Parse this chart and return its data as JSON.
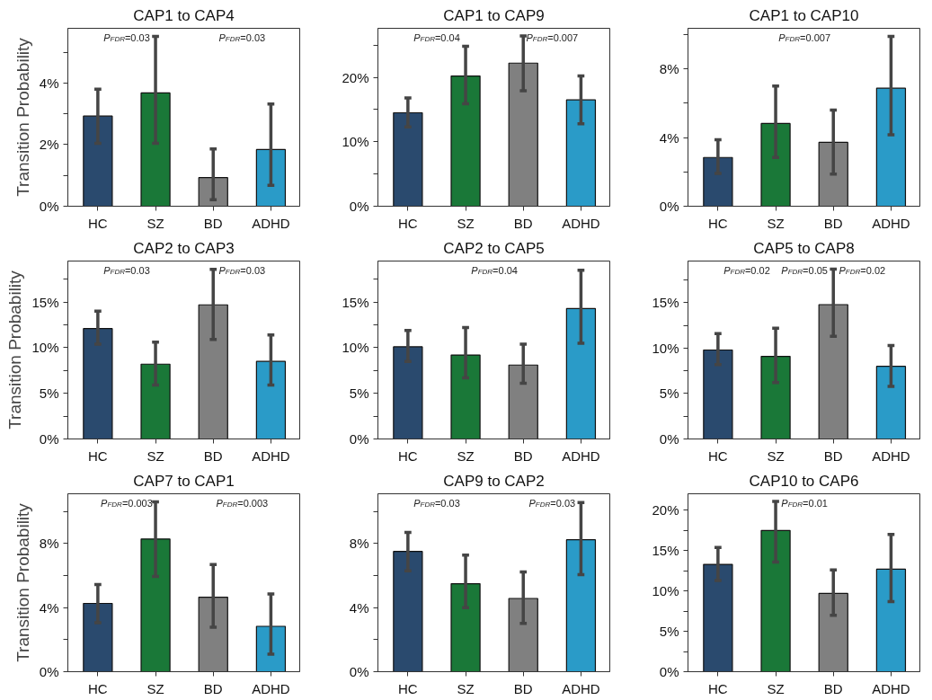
{
  "chart_data": [
    {
      "type": "bar",
      "title": "CAP1 to CAP4",
      "ylabel": "Transition Probability",
      "categories": [
        "HC",
        "SZ",
        "BD",
        "ADHD"
      ],
      "values": [
        2.93,
        3.68,
        0.93,
        1.84
      ],
      "colors": [
        "#2a4a6e",
        "#1a7838",
        "#808080",
        "#2a9bc8"
      ],
      "errors": [
        [
          2.04,
          3.8
        ],
        [
          2.04,
          5.52
        ],
        [
          0.21,
          1.86
        ],
        [
          0.68,
          3.32
        ]
      ],
      "ylim": [
        0,
        5.78
      ],
      "yticks": [
        {
          "value": 0,
          "label": "0%"
        },
        {
          "value": 1,
          "label": null
        },
        {
          "value": 2,
          "label": "2%"
        },
        {
          "value": 3,
          "label": null
        },
        {
          "value": 4,
          "label": "4%"
        },
        {
          "value": 5,
          "label": null
        }
      ],
      "grid": false,
      "annotations": [
        "P$_{FDR}$=0.03",
        "P$_{FDR}$=0.03"
      ]
    },
    {
      "type": "bar",
      "title": "CAP1 to CAP9",
      "categories": [
        "HC",
        "SZ",
        "BD",
        "ADHD"
      ],
      "values": [
        14.5,
        20.2,
        22.2,
        16.5
      ],
      "colors": [
        "#2a4a6e",
        "#1a7838",
        "#808080",
        "#2a9bc8"
      ],
      "errors": [
        [
          12.3,
          16.8
        ],
        [
          15.9,
          24.8
        ],
        [
          17.9,
          26.4
        ],
        [
          12.8,
          20.2
        ]
      ],
      "ylim": [
        0,
        27.6
      ],
      "yticks": [
        {
          "value": 0,
          "label": "0%"
        },
        {
          "value": 5,
          "label": null
        },
        {
          "value": 10,
          "label": "10%"
        },
        {
          "value": 15,
          "label": null
        },
        {
          "value": 20,
          "label": "20%"
        },
        {
          "value": 25,
          "label": null
        }
      ],
      "grid": false,
      "annotations": [
        "P$_{FDR}$=0.04",
        "P$_{FDR}$=0.007"
      ]
    },
    {
      "type": "bar",
      "title": "CAP1 to CAP10",
      "categories": [
        "HC",
        "SZ",
        "BD",
        "ADHD"
      ],
      "values": [
        2.84,
        4.82,
        3.72,
        6.88
      ],
      "colors": [
        "#2a4a6e",
        "#1a7838",
        "#808080",
        "#2a9bc8"
      ],
      "errors": [
        [
          1.91,
          3.87
        ],
        [
          2.84,
          7.0
        ],
        [
          1.87,
          5.6
        ],
        [
          4.17,
          9.9
        ]
      ],
      "ylim": [
        0,
        10.37
      ],
      "yticks": [
        {
          "value": 0,
          "label": "0%"
        },
        {
          "value": 2,
          "label": null
        },
        {
          "value": 4,
          "label": "4%"
        },
        {
          "value": 6,
          "label": null
        },
        {
          "value": 8,
          "label": "8%"
        },
        {
          "value": 10,
          "label": null
        }
      ],
      "grid": false,
      "annotations": [
        "P$_{FDR}$=0.007"
      ]
    },
    {
      "type": "bar",
      "title": "CAP2 to CAP3",
      "ylabel": "Transition Probability",
      "categories": [
        "HC",
        "SZ",
        "BD",
        "ADHD"
      ],
      "values": [
        12.1,
        8.2,
        14.7,
        8.5
      ],
      "colors": [
        "#2a4a6e",
        "#1a7838",
        "#808080",
        "#2a9bc8"
      ],
      "errors": [
        [
          10.4,
          14.0
        ],
        [
          5.9,
          10.6
        ],
        [
          10.9,
          18.6
        ],
        [
          5.9,
          11.4
        ]
      ],
      "ylim": [
        0,
        19.5
      ],
      "yticks": [
        {
          "value": 0,
          "label": "0%"
        },
        {
          "value": 2.5,
          "label": null
        },
        {
          "value": 5,
          "label": "5%"
        },
        {
          "value": 7.5,
          "label": null
        },
        {
          "value": 10,
          "label": "10%"
        },
        {
          "value": 12.5,
          "label": null
        },
        {
          "value": 15,
          "label": "15%"
        },
        {
          "value": 17.5,
          "label": null
        }
      ],
      "grid": false,
      "annotations": [
        "P$_{FDR}$=0.03",
        "P$_{FDR}$=0.03"
      ]
    },
    {
      "type": "bar",
      "title": "CAP2 to CAP5",
      "categories": [
        "HC",
        "SZ",
        "BD",
        "ADHD"
      ],
      "values": [
        10.1,
        9.2,
        8.1,
        14.3
      ],
      "colors": [
        "#2a4a6e",
        "#1a7838",
        "#808080",
        "#2a9bc8"
      ],
      "errors": [
        [
          8.5,
          11.9
        ],
        [
          6.7,
          12.2
        ],
        [
          6.1,
          10.4
        ],
        [
          10.5,
          18.5
        ]
      ],
      "ylim": [
        0,
        19.5
      ],
      "yticks": [
        {
          "value": 0,
          "label": "0%"
        },
        {
          "value": 2.5,
          "label": null
        },
        {
          "value": 5,
          "label": "5%"
        },
        {
          "value": 7.5,
          "label": null
        },
        {
          "value": 10,
          "label": "10%"
        },
        {
          "value": 12.5,
          "label": null
        },
        {
          "value": 15,
          "label": "15%"
        },
        {
          "value": 17.5,
          "label": null
        }
      ],
      "grid": false,
      "annotations": [
        "P$_{FDR}$=0.04"
      ]
    },
    {
      "type": "bar",
      "title": "CAP5 to CAP8",
      "categories": [
        "HC",
        "SZ",
        "BD",
        "ADHD"
      ],
      "values": [
        9.8,
        9.1,
        14.8,
        8.0
      ],
      "colors": [
        "#2a4a6e",
        "#1a7838",
        "#808080",
        "#2a9bc8"
      ],
      "errors": [
        [
          8.2,
          11.6
        ],
        [
          6.2,
          12.2
        ],
        [
          11.3,
          18.7
        ],
        [
          5.8,
          10.3
        ]
      ],
      "ylim": [
        0,
        19.6
      ],
      "yticks": [
        {
          "value": 0,
          "label": "0%"
        },
        {
          "value": 2.5,
          "label": null
        },
        {
          "value": 5,
          "label": "5%"
        },
        {
          "value": 7.5,
          "label": null
        },
        {
          "value": 10,
          "label": "10%"
        },
        {
          "value": 12.5,
          "label": null
        },
        {
          "value": 15,
          "label": "15%"
        },
        {
          "value": 17.5,
          "label": null
        }
      ],
      "grid": false,
      "annotations": [
        "P$_{FDR}$=0.02",
        "P$_{FDR}$=0.05",
        "P$_{FDR}$=0.02"
      ]
    },
    {
      "type": "bar",
      "title": "CAP7 to CAP1",
      "ylabel": "Transition Probability",
      "categories": [
        "HC",
        "SZ",
        "BD",
        "ADHD"
      ],
      "values": [
        4.26,
        8.28,
        4.65,
        2.83
      ],
      "colors": [
        "#2a4a6e",
        "#1a7838",
        "#808080",
        "#2a9bc8"
      ],
      "errors": [
        [
          3.06,
          5.44
        ],
        [
          5.94,
          10.6
        ],
        [
          2.77,
          6.69
        ],
        [
          1.09,
          4.85
        ]
      ],
      "ylim": [
        0,
        11.1
      ],
      "yticks": [
        {
          "value": 0,
          "label": "0%"
        },
        {
          "value": 2,
          "label": null
        },
        {
          "value": 4,
          "label": "4%"
        },
        {
          "value": 6,
          "label": null
        },
        {
          "value": 8,
          "label": "8%"
        },
        {
          "value": 10,
          "label": null
        }
      ],
      "grid": false,
      "annotations": [
        "P$_{FDR}$=0.003",
        "P$_{FDR}$=0.003"
      ]
    },
    {
      "type": "bar",
      "title": "CAP9 to CAP2",
      "categories": [
        "HC",
        "SZ",
        "BD",
        "ADHD"
      ],
      "values": [
        7.5,
        5.49,
        4.57,
        8.23
      ],
      "colors": [
        "#2a4a6e",
        "#1a7838",
        "#808080",
        "#2a9bc8"
      ],
      "errors": [
        [
          6.29,
          8.69
        ],
        [
          4.0,
          7.27
        ],
        [
          3.02,
          6.22
        ],
        [
          6.06,
          10.56
        ]
      ],
      "ylim": [
        0,
        11.1
      ],
      "yticks": [
        {
          "value": 0,
          "label": "0%"
        },
        {
          "value": 2,
          "label": null
        },
        {
          "value": 4,
          "label": "4%"
        },
        {
          "value": 6,
          "label": null
        },
        {
          "value": 8,
          "label": "8%"
        },
        {
          "value": 10,
          "label": null
        }
      ],
      "grid": false,
      "annotations": [
        "P$_{FDR}$=0.03",
        "P$_{FDR}$=0.03"
      ]
    },
    {
      "type": "bar",
      "title": "CAP10 to CAP6",
      "categories": [
        "HC",
        "SZ",
        "BD",
        "ADHD"
      ],
      "values": [
        13.3,
        17.5,
        9.7,
        12.7
      ],
      "colors": [
        "#2a4a6e",
        "#1a7838",
        "#808080",
        "#2a9bc8"
      ],
      "errors": [
        [
          11.3,
          15.4
        ],
        [
          13.6,
          21.1
        ],
        [
          7.0,
          12.6
        ],
        [
          8.7,
          17.0
        ]
      ],
      "ylim": [
        0,
        22.05
      ],
      "yticks": [
        {
          "value": 0,
          "label": "0%"
        },
        {
          "value": 2.5,
          "label": null
        },
        {
          "value": 5,
          "label": "5%"
        },
        {
          "value": 7.5,
          "label": null
        },
        {
          "value": 10,
          "label": "10%"
        },
        {
          "value": 12.5,
          "label": null
        },
        {
          "value": 15,
          "label": "15%"
        },
        {
          "value": 17.5,
          "label": null
        },
        {
          "value": 20,
          "label": "20%"
        }
      ],
      "grid": false,
      "annotations": [
        "P$_{FDR}$=0.01"
      ]
    }
  ]
}
